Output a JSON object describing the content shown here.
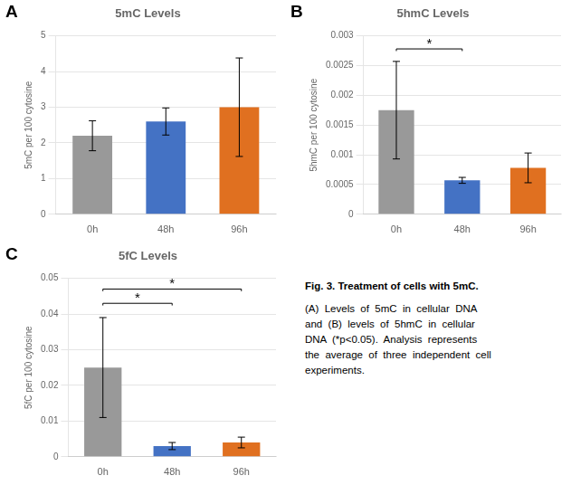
{
  "chart_data": [
    {
      "type": "bar",
      "panel": "A",
      "title": "5mC Levels",
      "ylabel": "5mC per 100 cytosine",
      "categories": [
        "0h",
        "48h",
        "96h"
      ],
      "values": [
        2.2,
        2.6,
        3.0
      ],
      "errors": [
        0.42,
        0.38,
        1.38
      ],
      "colors": [
        "#999999",
        "#4472C4",
        "#E07020"
      ],
      "ylim": [
        0,
        5
      ],
      "yticks": [
        0,
        1,
        2,
        3,
        4,
        5
      ],
      "grid": true
    },
    {
      "type": "bar",
      "panel": "B",
      "title": "5hmC Levels",
      "ylabel": "5hmC per 100 cytosine",
      "categories": [
        "0h",
        "48h",
        "96h"
      ],
      "values": [
        0.00175,
        0.00057,
        0.00078
      ],
      "errors": [
        0.00082,
        5e-05,
        0.00025
      ],
      "colors": [
        "#999999",
        "#4472C4",
        "#E07020"
      ],
      "ylim": [
        0,
        0.003
      ],
      "yticks": [
        0,
        0.0005,
        0.001,
        0.0015,
        0.002,
        0.0025,
        0.003
      ],
      "grid": true,
      "brackets": [
        {
          "from": "0h",
          "to": "48h",
          "y": 0.00278,
          "label": "*"
        }
      ]
    },
    {
      "type": "bar",
      "panel": "C",
      "title": "5fC Levels",
      "ylabel": "5fC per 100 cytosine",
      "categories": [
        "0h",
        "48h",
        "96h"
      ],
      "values": [
        0.025,
        0.003,
        0.004
      ],
      "errors": [
        0.014,
        0.001,
        0.0015
      ],
      "colors": [
        "#999999",
        "#4472C4",
        "#E07020"
      ],
      "ylim": [
        0,
        0.05
      ],
      "yticks": [
        0,
        0.01,
        0.02,
        0.03,
        0.04,
        0.05
      ],
      "grid": true,
      "brackets": [
        {
          "from": "0h",
          "to": "48h",
          "y": 0.043,
          "label": "*"
        },
        {
          "from": "0h",
          "to": "96h",
          "y": 0.047,
          "label": "*"
        }
      ]
    }
  ],
  "caption_title": "Fig. 3. Treatment of cells with 5mC.",
  "caption_lines": [
    "(A)  Levels  of  5mC  in  cellular  DNA",
    "and  (B)  levels  of  5hmC  in  cellular",
    "DNA  (*p<0.05).  Analysis  represents",
    "the  average  of  three  independent  cell",
    "experiments."
  ]
}
